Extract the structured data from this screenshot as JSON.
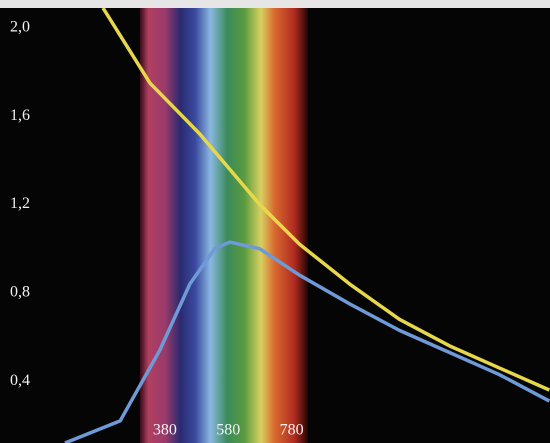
{
  "chart_data": {
    "type": "line",
    "xlim": [
      -140,
      1595
    ],
    "ylim": [
      0.12,
      2.09
    ],
    "xticks": [
      380,
      580,
      780
    ],
    "yticks": [
      {
        "value": 0.4,
        "label": "0,4"
      },
      {
        "value": 0.8,
        "label": "0,8"
      },
      {
        "value": 1.2,
        "label": "1,2"
      },
      {
        "value": 1.6,
        "label": "1,6"
      },
      {
        "value": 2.0,
        "label": "2,0"
      }
    ],
    "series": [
      {
        "color": "#e6d84a",
        "x": [
          185,
          333,
          490,
          679,
          805,
          963,
          1120,
          1278,
          1435,
          1593
        ],
        "values": [
          2.09,
          1.75,
          1.52,
          1.2,
          1.02,
          0.84,
          0.68,
          0.56,
          0.46,
          0.36
        ]
      },
      {
        "color": "#6f9ad8",
        "x": [
          65,
          239,
          364,
          459,
          537,
          585,
          679,
          805,
          963,
          1120,
          1278,
          1435,
          1593
        ],
        "values": [
          0.12,
          0.22,
          0.54,
          0.84,
          1.0,
          1.03,
          1.0,
          0.88,
          0.75,
          0.63,
          0.53,
          0.43,
          0.31
        ]
      }
    ]
  }
}
